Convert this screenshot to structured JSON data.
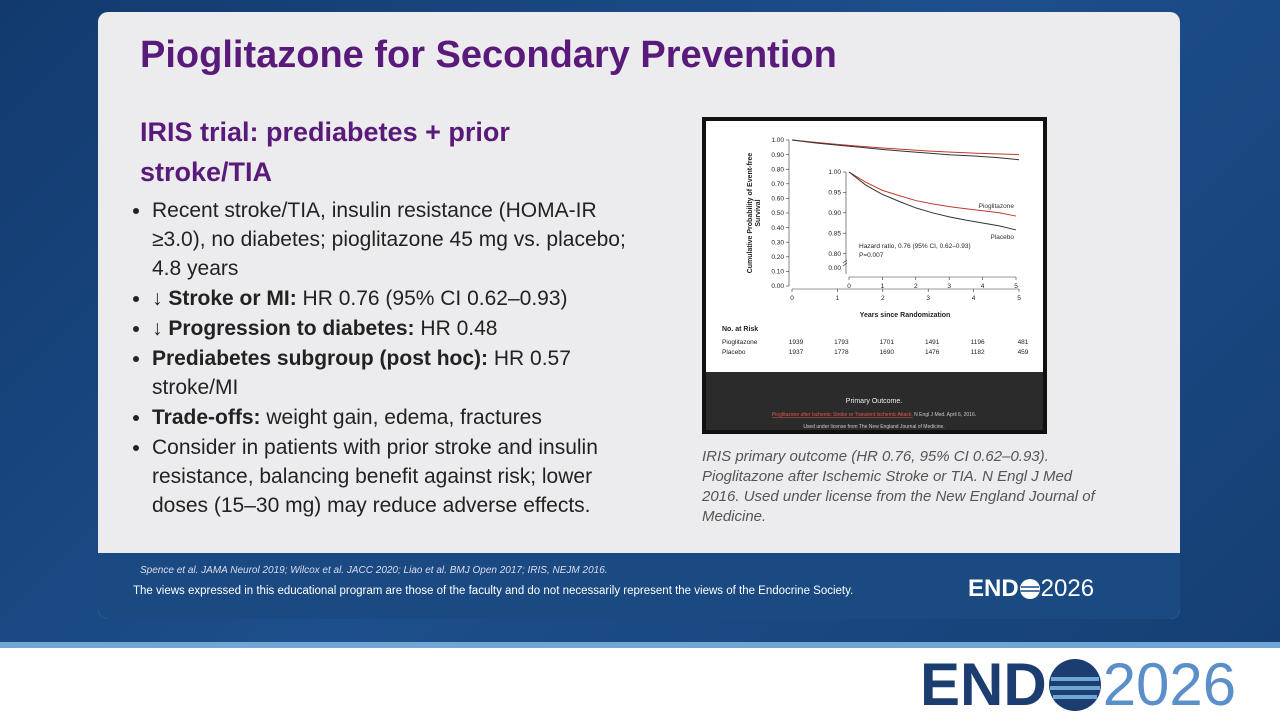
{
  "slide": {
    "title": "Pioglitazone for Secondary Prevention",
    "subtitle": "IRIS trial: prediabetes + prior stroke/TIA",
    "bullets": [
      [
        {
          "text": "Recent stroke/TIA, insulin resistance (HOMA-IR ≥3.0), no diabetes; pioglitazone 45 mg vs. placebo; 4.8 years",
          "bold": false
        }
      ],
      [
        {
          "text": "↓ Stroke or MI:",
          "bold": true
        },
        {
          "text": " HR 0.76 (95% CI 0.62–0.93)",
          "bold": false
        }
      ],
      [
        {
          "text": "↓ Progression to diabetes:",
          "bold": true
        },
        {
          "text": " HR 0.48",
          "bold": false
        }
      ],
      [
        {
          "text": "Prediabetes subgroup (post hoc):",
          "bold": true
        },
        {
          "text": " HR 0.57 stroke/MI",
          "bold": false
        }
      ],
      [
        {
          "text": "Trade-offs:",
          "bold": true
        },
        {
          "text": " weight gain, edema, fractures",
          "bold": false
        }
      ],
      [
        {
          "text": "Consider in patients with prior stroke and insulin resistance, balancing benefit against risk; lower doses (15–30 mg) may reduce adverse effects.",
          "bold": false
        }
      ]
    ],
    "caption": "IRIS primary outcome (HR 0.76, 95% CI 0.62–0.93). Pioglitazone after Ischemic Stroke or TIA. N Engl J Med 2016. Used under license from the New England Journal of Medicine.",
    "references": "Spence et al. JAMA Neurol 2019; Wilcox et al. JACC 2020; Liao et al. BMJ Open 2017; IRIS, NEJM 2016.",
    "disclaimer": "The views expressed in this educational program are those of the faculty and do not necessarily represent the views of the Endocrine Society.",
    "logo": {
      "left": "END",
      "right": "2026"
    }
  },
  "banner": {
    "logo": {
      "left": "END",
      "right": "2026"
    }
  },
  "figure": {
    "caption_title": "Primary Outcome.",
    "source_link": "Pioglitazone after Ischemic Stroke or Transient Ischemic Attack.",
    "source_rest": " N Engl J Med. April 6, 2016.",
    "license": "Used under license from The New England Journal of Medicine."
  },
  "chart_data": [
    {
      "type": "line",
      "ylabel": "Cumulative Probability of Event-free Survival",
      "xlabel": "Years since Randomization",
      "x": [
        0,
        0.5,
        1,
        1.5,
        2,
        2.5,
        3,
        3.5,
        4,
        4.5,
        5
      ],
      "xlim": [
        0,
        5
      ],
      "xticks": [
        0,
        1,
        2,
        3,
        4,
        5
      ],
      "ylim": [
        0,
        1
      ],
      "yticks": [
        {
          "value": 0,
          "label": "0.00"
        },
        {
          "value": 0.1,
          "label": "0.10"
        },
        {
          "value": 0.2,
          "label": "0.20"
        },
        {
          "value": 0.3,
          "label": "0.30"
        },
        {
          "value": 0.4,
          "label": "0.40"
        },
        {
          "value": 0.5,
          "label": "0.50"
        },
        {
          "value": 0.6,
          "label": "0.60"
        },
        {
          "value": 0.7,
          "label": "0.70"
        },
        {
          "value": 0.8,
          "label": "0.80"
        },
        {
          "value": 0.9,
          "label": "0.90"
        },
        {
          "value": 1,
          "label": "1.00"
        }
      ],
      "series": [
        {
          "color": "#c0392b",
          "values": [
            1,
            0.985,
            0.97,
            0.957,
            0.945,
            0.935,
            0.925,
            0.917,
            0.91,
            0.905,
            0.9
          ]
        },
        {
          "color": "#333333",
          "values": [
            1,
            0.98,
            0.965,
            0.95,
            0.935,
            0.922,
            0.91,
            0.898,
            0.89,
            0.88,
            0.865
          ]
        }
      ],
      "at_risk": {
        "title": "No. at Risk",
        "rows": [
          {
            "name": "Pioglitazone",
            "values": [
              1939,
              1793,
              1701,
              1491,
              1196,
              481
            ]
          },
          {
            "name": "Placebo",
            "values": [
              1937,
              1778,
              1690,
              1476,
              1182,
              459
            ]
          }
        ]
      }
    },
    {
      "type": "line",
      "x": [
        0,
        0.5,
        1,
        1.5,
        2,
        2.5,
        3,
        3.5,
        4,
        4.5,
        5
      ],
      "xlim": [
        0,
        5
      ],
      "xticks": [
        0,
        1,
        2,
        3,
        4,
        5
      ],
      "ylim": [
        0.75,
        1
      ],
      "yticks": [
        {
          "value": 0.8,
          "label": "0.80"
        },
        {
          "value": 0.85,
          "label": "0.85"
        },
        {
          "value": 0.9,
          "label": "0.90"
        },
        {
          "value": 0.95,
          "label": "0.95"
        },
        {
          "value": 1,
          "label": "1.00"
        }
      ],
      "axis_break_label": "0.00",
      "annotations": [
        "Hazard ratio, 0.76 (95% CI, 0.62–0.93)",
        "P=0.007"
      ],
      "series": [
        {
          "name": "Pioglitazone",
          "color": "#c0392b",
          "values": [
            1,
            0.975,
            0.955,
            0.942,
            0.93,
            0.922,
            0.915,
            0.91,
            0.905,
            0.9,
            0.892
          ]
        },
        {
          "name": "Placebo",
          "color": "#333333",
          "values": [
            1,
            0.968,
            0.945,
            0.928,
            0.912,
            0.9,
            0.89,
            0.882,
            0.875,
            0.868,
            0.858
          ]
        }
      ]
    }
  ]
}
